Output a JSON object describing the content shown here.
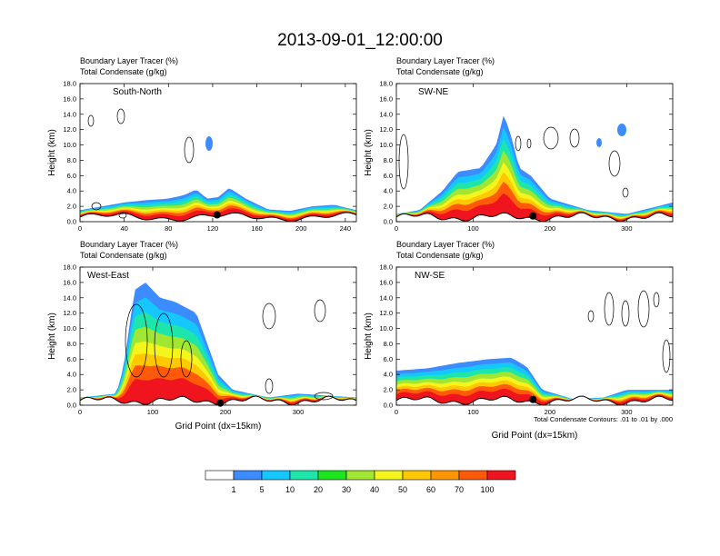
{
  "figure": {
    "title": "2013-09-01_12:00:00",
    "subtitle_line1": "Boundary Layer Tracer    (%)",
    "subtitle_line2": "Total Condensate    (g/kg)",
    "x_axis_label": "Grid Point (dx=15km)",
    "y_axis_label": "Height (km)",
    "contour_note": "Total Condensate Contours: .01 to .01 by .000"
  },
  "colorbar": {
    "colors": [
      "#ffffff",
      "#3c8cff",
      "#14c8ff",
      "#1ee6aa",
      "#1ee61e",
      "#a0e632",
      "#f5f51e",
      "#ffc800",
      "#ff9600",
      "#ff5a0a",
      "#f0141e"
    ],
    "labels": [
      "1",
      "5",
      "10",
      "20",
      "30",
      "40",
      "50",
      "60",
      "70",
      "100"
    ]
  },
  "chart_data": [
    {
      "type": "contour-cross-section",
      "panel_label": "South-North",
      "title": "Boundary Layer Tracer (%) / Total Condensate (g/kg)",
      "xlabel": "",
      "ylabel": "Height (km)",
      "xlim": [
        0,
        250
      ],
      "ylim": [
        0,
        18
      ],
      "xticks": [
        "0",
        "40",
        "80",
        "120",
        "160",
        "200",
        "240"
      ],
      "yticks": [
        "0.0",
        "2.0",
        "4.0",
        "6.0",
        "8.0",
        "10.0",
        "12.0",
        "14.0",
        "16.0",
        "18.0"
      ],
      "marker_x": 124,
      "tracer_top_km": {
        "x": [
          0,
          20,
          40,
          60,
          80,
          95,
          105,
          115,
          125,
          135,
          150,
          170,
          190,
          210,
          230,
          250
        ],
        "y": [
          1.5,
          2.0,
          2.5,
          2.8,
          3.0,
          3.5,
          4.2,
          3.0,
          3.2,
          4.4,
          3.0,
          1.6,
          1.4,
          2.0,
          2.2,
          1.5
        ]
      }
    },
    {
      "type": "contour-cross-section",
      "panel_label": "SW-NE",
      "title": "Boundary Layer Tracer (%) / Total Condensate (g/kg)",
      "xlabel": "",
      "ylabel": "Height (km)",
      "xlim": [
        0,
        360
      ],
      "ylim": [
        0,
        18
      ],
      "xticks": [
        "0",
        "100",
        "200",
        "300"
      ],
      "yticks": [
        "0.0",
        "2.0",
        "4.0",
        "6.0",
        "8.0",
        "10.0",
        "12.0",
        "14.0",
        "16.0",
        "18.0"
      ],
      "marker_x": 178,
      "tracer_top_km": {
        "x": [
          0,
          30,
          60,
          80,
          110,
          130,
          140,
          150,
          160,
          175,
          200,
          250,
          300,
          360
        ],
        "y": [
          1.0,
          1.5,
          4.0,
          6.5,
          7.0,
          10.0,
          14.0,
          11.0,
          7.0,
          6.0,
          3.0,
          1.5,
          1.0,
          2.5
        ]
      }
    },
    {
      "type": "contour-cross-section",
      "panel_label": "West-East",
      "title": "Boundary Layer Tracer (%) / Total Condensate (g/kg)",
      "xlabel": "Grid Point (dx=15km)",
      "ylabel": "Height (km)",
      "xlim": [
        0,
        380
      ],
      "ylim": [
        0,
        18
      ],
      "xticks": [
        "0",
        "100",
        "200",
        "300"
      ],
      "yticks": [
        "0.0",
        "2.0",
        "4.0",
        "6.0",
        "8.0",
        "10.0",
        "12.0",
        "14.0",
        "16.0",
        "18.0"
      ],
      "marker_x": 193,
      "tracer_top_km": {
        "x": [
          0,
          50,
          60,
          75,
          90,
          110,
          130,
          160,
          190,
          210,
          260,
          300,
          380
        ],
        "y": [
          1.0,
          1.5,
          5.0,
          15.0,
          16.0,
          14.0,
          13.5,
          12.0,
          4.0,
          2.0,
          1.0,
          1.5,
          1.0
        ]
      }
    },
    {
      "type": "contour-cross-section",
      "panel_label": "NW-SE",
      "title": "Boundary Layer Tracer (%) / Total Condensate (g/kg)",
      "xlabel": "Grid Point (dx=15km)",
      "ylabel": "Height (km)",
      "xlim": [
        0,
        360
      ],
      "ylim": [
        0,
        18
      ],
      "xticks": [
        "0",
        "100",
        "200",
        "300"
      ],
      "yticks": [
        "0.0",
        "2.0",
        "4.0",
        "6.0",
        "8.0",
        "10.0",
        "12.0",
        "14.0",
        "16.0",
        "18.0"
      ],
      "marker_x": 178,
      "tracer_top_km": {
        "x": [
          0,
          40,
          80,
          120,
          150,
          170,
          190,
          230,
          270,
          300,
          360
        ],
        "y": [
          4.5,
          4.8,
          5.5,
          6.0,
          6.2,
          5.0,
          2.0,
          0.8,
          1.0,
          2.0,
          2.0
        ]
      }
    }
  ]
}
